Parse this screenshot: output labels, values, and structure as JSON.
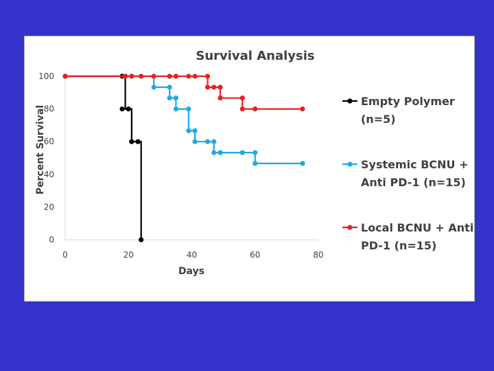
{
  "colors": {
    "background": "#3333cc",
    "panel": "#ffffff",
    "empty_polymer": "#000000",
    "systemic": "#1eaae6",
    "local": "#e8221c",
    "axis": "#d9d9d9",
    "text": "#404040"
  },
  "chart_data": {
    "type": "line",
    "step": true,
    "title": "Survival Analysis",
    "xlabel": "Days",
    "ylabel": "Percent Survival",
    "xlim": [
      0,
      80
    ],
    "ylim": [
      0,
      100
    ],
    "xticks": [
      0,
      20,
      40,
      60,
      80
    ],
    "yticks": [
      0,
      20,
      40,
      60,
      80,
      100
    ],
    "grid": false,
    "legend_position": "right",
    "series": [
      {
        "name": "Empty Polymer",
        "legend_lines": [
          "Empty Polymer",
          "(n=5)"
        ],
        "color_key": "empty_polymer",
        "points": [
          [
            0,
            100
          ],
          [
            18,
            100
          ],
          [
            19,
            100
          ],
          [
            21,
            100
          ],
          [
            24,
            100
          ],
          [
            18,
            80
          ],
          [
            20,
            80
          ],
          [
            21,
            60
          ],
          [
            23,
            60
          ],
          [
            24,
            0
          ]
        ],
        "path": [
          [
            0,
            100
          ],
          [
            19,
            100
          ],
          [
            19,
            80
          ],
          [
            21,
            80
          ],
          [
            21,
            60
          ],
          [
            24,
            60
          ],
          [
            24,
            0
          ]
        ]
      },
      {
        "name": "Systemic BCNU + Anti PD-1 (n=15)",
        "legend_lines": [
          "Systemic BCNU +",
          "Anti PD-1 (n=15)"
        ],
        "color_key": "systemic",
        "points": [
          [
            0,
            100
          ],
          [
            19,
            100
          ],
          [
            21,
            100
          ],
          [
            24,
            100
          ],
          [
            28,
            93.3
          ],
          [
            33,
            93.3
          ],
          [
            33,
            86.7
          ],
          [
            35,
            86.7
          ],
          [
            35,
            80
          ],
          [
            39,
            80
          ],
          [
            39,
            66.7
          ],
          [
            41,
            66.7
          ],
          [
            41,
            60
          ],
          [
            45,
            60
          ],
          [
            47,
            60
          ],
          [
            47,
            53.3
          ],
          [
            49,
            53.3
          ],
          [
            56,
            53.3
          ],
          [
            60,
            53.3
          ],
          [
            60,
            46.7
          ],
          [
            75,
            46.7
          ]
        ],
        "path": [
          [
            0,
            100
          ],
          [
            28,
            100
          ],
          [
            28,
            93.3
          ],
          [
            33,
            93.3
          ],
          [
            33,
            86.7
          ],
          [
            35,
            86.7
          ],
          [
            35,
            80
          ],
          [
            39,
            80
          ],
          [
            39,
            66.7
          ],
          [
            41,
            66.7
          ],
          [
            41,
            60
          ],
          [
            47,
            60
          ],
          [
            47,
            53.3
          ],
          [
            60,
            53.3
          ],
          [
            60,
            46.7
          ],
          [
            75,
            46.7
          ]
        ]
      },
      {
        "name": "Local BCNU + Anti PD-1 (n=15)",
        "legend_lines": [
          "Local BCNU + Anti",
          "PD-1 (n=15)"
        ],
        "color_key": "local",
        "points": [
          [
            0,
            100
          ],
          [
            19,
            100
          ],
          [
            21,
            100
          ],
          [
            24,
            100
          ],
          [
            28,
            100
          ],
          [
            33,
            100
          ],
          [
            35,
            100
          ],
          [
            39,
            100
          ],
          [
            41,
            100
          ],
          [
            45,
            100
          ],
          [
            45,
            93.3
          ],
          [
            47,
            93.3
          ],
          [
            49,
            93.3
          ],
          [
            49,
            86.7
          ],
          [
            56,
            86.7
          ],
          [
            56,
            80
          ],
          [
            60,
            80
          ],
          [
            75,
            80
          ]
        ],
        "path": [
          [
            0,
            100
          ],
          [
            45,
            100
          ],
          [
            45,
            93.3
          ],
          [
            49,
            93.3
          ],
          [
            49,
            86.7
          ],
          [
            56,
            86.7
          ],
          [
            56,
            80
          ],
          [
            75,
            80
          ]
        ]
      }
    ]
  }
}
